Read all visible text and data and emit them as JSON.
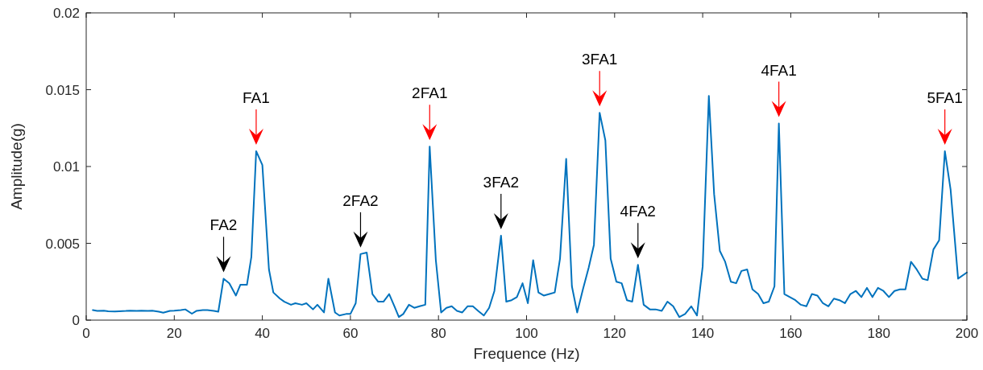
{
  "chart_data": {
    "type": "line",
    "xlabel": "Frequence (Hz)",
    "ylabel": "Amplitude(g)",
    "xlim": [
      0,
      200
    ],
    "xticks": [
      0,
      20,
      40,
      60,
      80,
      100,
      120,
      140,
      160,
      180,
      200
    ],
    "ylim": [
      0,
      0.02
    ],
    "yticks": [
      0,
      0.005,
      0.01,
      0.015,
      0.02
    ],
    "grid": false,
    "marker": "none",
    "line_style": "solid",
    "series": [
      {
        "color": "#0072bd",
        "x": [
          1.5,
          2.5,
          4,
          5,
          6.5,
          7.5,
          9,
          10,
          11.5,
          12.5,
          14,
          15,
          16.5,
          17.5,
          19,
          20,
          21.5,
          22.5,
          24,
          25,
          26.5,
          27.5,
          29,
          30,
          31.2,
          32.5,
          34,
          35,
          36.5,
          37.5,
          38.6,
          40,
          41.5,
          42.5,
          44,
          45,
          46.5,
          47.5,
          49,
          50,
          51.5,
          52.5,
          54,
          55,
          56.5,
          57.5,
          59,
          60,
          61.2,
          62.3,
          63.7,
          65,
          66.3,
          67.5,
          68.8,
          70,
          71,
          72,
          73.3,
          74.5,
          75.7,
          77,
          78,
          79.4,
          80.6,
          81.8,
          83,
          84.2,
          85.4,
          86.6,
          87.8,
          89,
          90.3,
          91.5,
          92.7,
          94.2,
          95.4,
          96.6,
          97.8,
          99.1,
          100.3,
          101.5,
          102.7,
          103.9,
          105.2,
          106.4,
          107.6,
          109,
          110.3,
          111.5,
          112.8,
          114.1,
          115.3,
          116.6,
          117.9,
          119.1,
          120.4,
          121.6,
          122.8,
          124,
          125.3,
          126.6,
          128,
          129.3,
          130.7,
          132,
          133.3,
          134.7,
          136,
          137.4,
          138.7,
          140,
          141.4,
          142.6,
          143.9,
          145.1,
          146.4,
          147.6,
          148.8,
          150.1,
          151.3,
          152.6,
          153.8,
          155,
          156.3,
          157.3,
          158.55,
          159.8,
          161.05,
          162.3,
          163.55,
          164.8,
          166.05,
          167.3,
          168.55,
          169.8,
          171.05,
          172.3,
          173.55,
          174.8,
          176.05,
          177.3,
          178.55,
          179.8,
          181.05,
          182.3,
          183.55,
          184.8,
          186.05,
          187.3,
          188.6,
          189.9,
          191.1,
          192.4,
          193.7,
          195,
          196.3,
          198,
          200
        ],
        "values": [
          0.00065,
          0.0006,
          0.00062,
          0.00058,
          0.00056,
          0.00058,
          0.0006,
          0.00062,
          0.0006,
          0.00062,
          0.0006,
          0.00062,
          0.00055,
          0.00048,
          0.0006,
          0.00062,
          0.00066,
          0.0007,
          0.00042,
          0.0006,
          0.00065,
          0.00065,
          0.0006,
          0.00055,
          0.0027,
          0.0024,
          0.0016,
          0.0023,
          0.0023,
          0.0041,
          0.011,
          0.0101,
          0.0033,
          0.0018,
          0.0014,
          0.0012,
          0.001,
          0.0011,
          0.001,
          0.0011,
          0.0007,
          0.001,
          0.0005,
          0.0027,
          0.0005,
          0.0003,
          0.0004,
          0.0004,
          0.0011,
          0.0043,
          0.0044,
          0.0017,
          0.0012,
          0.0012,
          0.0017,
          0.0009,
          0.0002,
          0.0004,
          0.001,
          0.0008,
          0.0009,
          0.001,
          0.0113,
          0.0039,
          0.0005,
          0.0008,
          0.0009,
          0.0006,
          0.0005,
          0.0009,
          0.0009,
          0.0006,
          0.0003,
          0.0008,
          0.0019,
          0.0055,
          0.0012,
          0.0013,
          0.0015,
          0.0024,
          0.0011,
          0.0039,
          0.0018,
          0.0016,
          0.0017,
          0.0018,
          0.004,
          0.0105,
          0.0022,
          0.0005,
          0.002,
          0.0034,
          0.0049,
          0.0135,
          0.0117,
          0.004,
          0.0025,
          0.0024,
          0.0013,
          0.0012,
          0.0036,
          0.001,
          0.0007,
          0.0007,
          0.0006,
          0.0012,
          0.0009,
          0.0002,
          0.0004,
          0.0009,
          0.0003,
          0.0035,
          0.0146,
          0.0082,
          0.0045,
          0.0038,
          0.0025,
          0.0024,
          0.0032,
          0.0033,
          0.002,
          0.0017,
          0.0011,
          0.0012,
          0.0022,
          0.0128,
          0.0017,
          0.0015,
          0.0013,
          0.001,
          0.0009,
          0.0017,
          0.0016,
          0.0011,
          0.0009,
          0.0014,
          0.0013,
          0.0011,
          0.0017,
          0.0019,
          0.0015,
          0.0021,
          0.0015,
          0.0021,
          0.0019,
          0.0015,
          0.0019,
          0.002,
          0.002,
          0.0038,
          0.0033,
          0.0027,
          0.0026,
          0.0046,
          0.0052,
          0.011,
          0.0085,
          0.0027,
          0.0031
        ]
      }
    ],
    "annotations": [
      {
        "text": "FA2",
        "x": 31.2,
        "y": 0.0027
      },
      {
        "text": "FA1",
        "x": 38.6,
        "y": 0.011
      },
      {
        "text": "2FA2",
        "x": 62.3,
        "y": 0.0043
      },
      {
        "text": "2FA1",
        "x": 78,
        "y": 0.0113
      },
      {
        "text": "3FA2",
        "x": 94.2,
        "y": 0.0055
      },
      {
        "text": "3FA1",
        "x": 116.6,
        "y": 0.0135
      },
      {
        "text": "4FA2",
        "x": 125.3,
        "y": 0.0036
      },
      {
        "text": "4FA1",
        "x": 157.3,
        "y": 0.0128
      },
      {
        "text": "5FA1",
        "x": 195,
        "y": 0.011
      }
    ]
  }
}
